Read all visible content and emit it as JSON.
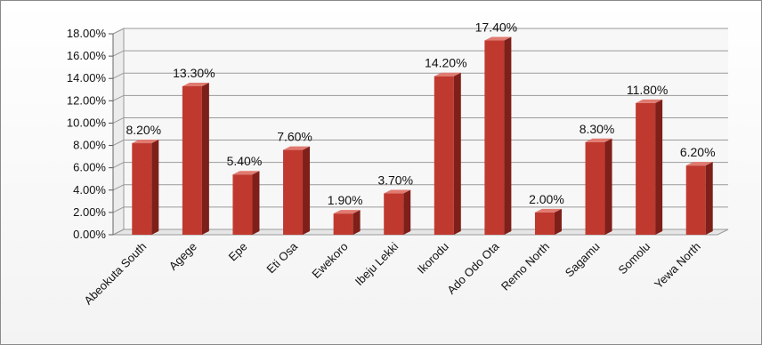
{
  "chart_data": {
    "type": "bar",
    "title": "",
    "xlabel": "",
    "ylabel": "",
    "categories": [
      "Abeokuta South",
      "Agege",
      "Epe",
      "Eti Osa",
      "Ewekoro",
      "Ibeju Lekki",
      "Ikorodu",
      "Ado Odo Ota",
      "Remo North",
      "Sagamu",
      "Somolu",
      "Yewa North"
    ],
    "values": [
      8.2,
      13.3,
      5.4,
      7.6,
      1.9,
      3.7,
      14.2,
      17.4,
      2.0,
      8.3,
      11.8,
      6.2
    ],
    "value_labels": [
      "8.20%",
      "13.30%",
      "5.40%",
      "7.60%",
      "1.90%",
      "3.70%",
      "14.20%",
      "17.40%",
      "2.00%",
      "8.30%",
      "11.80%",
      "6.20%"
    ],
    "ylim": [
      0,
      18
    ],
    "yticks": [
      0,
      2,
      4,
      6,
      8,
      10,
      12,
      14,
      16,
      18
    ],
    "ytick_labels": [
      "0.00%",
      "2.00%",
      "4.00%",
      "6.00%",
      "8.00%",
      "10.00%",
      "12.00%",
      "14.00%",
      "16.00%",
      "18.00%"
    ],
    "grid": true,
    "style": "3d-column",
    "colors": {
      "bar_front": "#c0392f",
      "bar_side": "#7e1f1a",
      "bar_top": "#e07a70",
      "grid": "#9a9a9a",
      "wall": "#f7f7f7"
    }
  }
}
